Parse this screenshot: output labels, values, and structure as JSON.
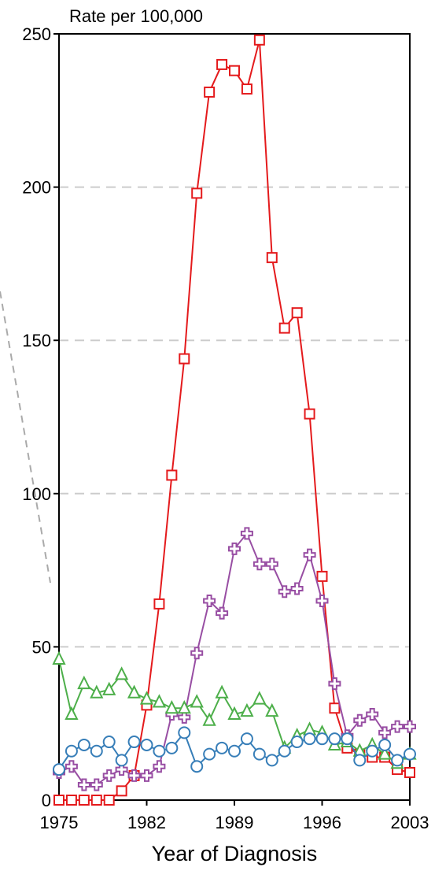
{
  "chart_data": {
    "type": "line",
    "title": "",
    "ylabel": "Rate per 100,000",
    "xlabel": "Year of Diagnosis",
    "xlim": [
      1975,
      2003
    ],
    "ylim": [
      0,
      250
    ],
    "xticks": [
      1975,
      1982,
      1989,
      1996,
      2003
    ],
    "yticks": [
      0,
      50,
      100,
      150,
      200,
      250
    ],
    "grid": "horizontal dashed",
    "legend": "none",
    "x": [
      1975,
      1976,
      1977,
      1978,
      1979,
      1980,
      1981,
      1982,
      1983,
      1984,
      1985,
      1986,
      1987,
      1988,
      1989,
      1990,
      1991,
      1992,
      1993,
      1994,
      1995,
      1996,
      1997,
      1998,
      1999,
      2000,
      2001,
      2002,
      2003
    ],
    "series": [
      {
        "color": "#e41a1c",
        "marker": "square",
        "values": [
          0,
          0,
          0,
          0,
          0,
          3,
          8,
          31,
          64,
          106,
          144,
          198,
          231,
          240,
          238,
          232,
          248,
          177,
          154,
          159,
          126,
          73,
          30,
          17,
          15,
          14,
          14,
          10,
          9
        ]
      },
      {
        "color": "#984ea3",
        "marker": "cross",
        "values": [
          9,
          11,
          5,
          5,
          8,
          10,
          8,
          8,
          11,
          28,
          27,
          48,
          65,
          61,
          82,
          87,
          77,
          77,
          68,
          69,
          80,
          65,
          38,
          21,
          26,
          28,
          22,
          24,
          24
        ]
      },
      {
        "color": "#4daf4a",
        "marker": "triangle",
        "values": [
          46,
          28,
          38,
          35,
          36,
          41,
          35,
          33,
          32,
          30,
          30,
          32,
          26,
          35,
          28,
          29,
          33,
          29,
          17,
          21,
          23,
          22,
          18,
          19,
          16,
          18,
          15,
          12,
          15
        ]
      },
      {
        "color": "#377eb8",
        "marker": "circle",
        "values": [
          10,
          16,
          18,
          16,
          19,
          13,
          19,
          18,
          16,
          17,
          22,
          11,
          15,
          17,
          16,
          20,
          15,
          13,
          16,
          19,
          20,
          20,
          20,
          20,
          13,
          16,
          18,
          13,
          15
        ]
      }
    ]
  }
}
